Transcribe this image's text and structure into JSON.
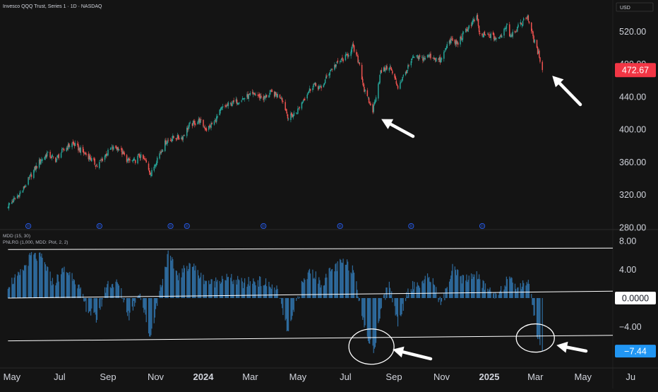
{
  "header": {
    "symbol_line": "Invesco QQQ Trust, Series 1 · 1D · NASDAQ",
    "currency": "USD"
  },
  "colors": {
    "background": "#141414",
    "up": "#26a69a",
    "down": "#ef5350",
    "histogram": "#2e6b9e",
    "last_price_badge": "#f23645",
    "indicator_badge": "#2196f3",
    "event_marker": "#2962ff",
    "line": "#ffffff",
    "arrow": "#ffffff"
  },
  "chart_data": [
    {
      "type": "candlestick",
      "title": "Invesco QQQ Trust, Series 1 · 1D · NASDAQ",
      "ylim": [
        280,
        555
      ],
      "y_ticks": [
        520,
        480,
        440,
        400,
        360,
        320,
        280
      ],
      "y_tick_labels": [
        "520.00",
        "480.00",
        "440.00",
        "400.00",
        "360.00",
        "320.00",
        "280.00"
      ],
      "last_price_label": "472.67",
      "series": [
        {
          "name": "close",
          "points": [
            [
              "2023-04-26",
              307
            ],
            [
              "2023-05-05",
              315
            ],
            [
              "2023-05-15",
              326
            ],
            [
              "2023-05-26",
              345
            ],
            [
              "2023-06-05",
              360
            ],
            [
              "2023-06-15",
              370
            ],
            [
              "2023-06-26",
              363
            ],
            [
              "2023-07-06",
              375
            ],
            [
              "2023-07-18",
              383
            ],
            [
              "2023-07-27",
              375
            ],
            [
              "2023-08-07",
              367
            ],
            [
              "2023-08-18",
              355
            ],
            [
              "2023-08-28",
              368
            ],
            [
              "2023-09-05",
              376
            ],
            [
              "2023-09-14",
              378
            ],
            [
              "2023-09-26",
              362
            ],
            [
              "2023-10-05",
              361
            ],
            [
              "2023-10-11",
              368
            ],
            [
              "2023-10-19",
              361
            ],
            [
              "2023-10-26",
              345
            ],
            [
              "2023-11-03",
              365
            ],
            [
              "2023-11-14",
              385
            ],
            [
              "2023-11-24",
              390
            ],
            [
              "2023-12-05",
              390
            ],
            [
              "2023-12-14",
              405
            ],
            [
              "2023-12-27",
              411
            ],
            [
              "2024-01-05",
              400
            ],
            [
              "2024-01-16",
              410
            ],
            [
              "2024-01-24",
              425
            ],
            [
              "2024-02-02",
              430
            ],
            [
              "2024-02-14",
              435
            ],
            [
              "2024-02-26",
              440
            ],
            [
              "2024-03-07",
              443
            ],
            [
              "2024-03-18",
              438
            ],
            [
              "2024-03-27",
              445
            ],
            [
              "2024-04-10",
              440
            ],
            [
              "2024-04-19",
              414
            ],
            [
              "2024-04-30",
              422
            ],
            [
              "2024-05-10",
              440
            ],
            [
              "2024-05-21",
              455
            ],
            [
              "2024-05-31",
              450
            ],
            [
              "2024-06-11",
              472
            ],
            [
              "2024-06-20",
              480
            ],
            [
              "2024-07-03",
              490
            ],
            [
              "2024-07-10",
              501
            ],
            [
              "2024-07-19",
              480
            ],
            [
              "2024-07-25",
              448
            ],
            [
              "2024-08-05",
              423
            ],
            [
              "2024-08-15",
              470
            ],
            [
              "2024-08-26",
              478
            ],
            [
              "2024-09-06",
              452
            ],
            [
              "2024-09-16",
              470
            ],
            [
              "2024-09-26",
              488
            ],
            [
              "2024-10-07",
              487
            ],
            [
              "2024-10-17",
              490
            ],
            [
              "2024-10-31",
              484
            ],
            [
              "2024-11-11",
              510
            ],
            [
              "2024-11-21",
              505
            ],
            [
              "2024-12-05",
              525
            ],
            [
              "2024-12-16",
              537
            ],
            [
              "2024-12-20",
              515
            ],
            [
              "2025-01-02",
              515
            ],
            [
              "2025-01-13",
              510
            ],
            [
              "2025-01-24",
              530
            ],
            [
              "2025-01-27",
              515
            ],
            [
              "2025-02-07",
              525
            ],
            [
              "2025-02-19",
              539
            ],
            [
              "2025-02-24",
              520
            ],
            [
              "2025-03-03",
              497
            ],
            [
              "2025-03-06",
              490
            ],
            [
              "2025-03-10",
              472.67
            ]
          ]
        }
      ],
      "event_markers": [
        "2023-05-22",
        "2023-08-21",
        "2023-11-20",
        "2023-12-11",
        "2024-03-18",
        "2024-06-24",
        "2024-09-23",
        "2024-12-23"
      ],
      "event_marker_letter": "D"
    },
    {
      "type": "bar",
      "title": "MDD (15, 30)",
      "subtitle": "PNLRG (1,000, MDD: Plot, 2, 2)",
      "ylim": [
        -9.5,
        9.3
      ],
      "y_ticks": [
        8,
        4,
        0,
        -4
      ],
      "y_tick_labels": [
        "8.00",
        "4.00",
        "0.0000",
        "−4.00"
      ],
      "last_value_label": "−7.44",
      "last_value": -7.44,
      "key_values": [
        [
          "2023-04-26",
          2
        ],
        [
          "2023-05-10",
          3
        ],
        [
          "2023-05-26",
          6
        ],
        [
          "2023-06-09",
          5.5
        ],
        [
          "2023-06-23",
          2
        ],
        [
          "2023-07-07",
          4
        ],
        [
          "2023-07-20",
          3
        ],
        [
          "2023-08-03",
          -1
        ],
        [
          "2023-08-17",
          -3
        ],
        [
          "2023-08-31",
          2
        ],
        [
          "2023-09-14",
          2
        ],
        [
          "2023-09-28",
          -2.5
        ],
        [
          "2023-10-11",
          1
        ],
        [
          "2023-10-25",
          -5.5
        ],
        [
          "2023-11-06",
          1
        ],
        [
          "2023-11-17",
          6
        ],
        [
          "2023-12-01",
          3
        ],
        [
          "2023-12-15",
          5
        ],
        [
          "2023-12-29",
          3
        ],
        [
          "2024-01-12",
          2
        ],
        [
          "2024-01-26",
          3
        ],
        [
          "2024-02-09",
          2.5
        ],
        [
          "2024-02-23",
          2
        ],
        [
          "2024-03-08",
          2.5
        ],
        [
          "2024-03-22",
          2
        ],
        [
          "2024-04-05",
          1
        ],
        [
          "2024-04-19",
          -5
        ],
        [
          "2024-05-03",
          1
        ],
        [
          "2024-05-17",
          4
        ],
        [
          "2024-05-31",
          2
        ],
        [
          "2024-06-14",
          4
        ],
        [
          "2024-06-28",
          5
        ],
        [
          "2024-07-12",
          4
        ],
        [
          "2024-07-26",
          -4.5
        ],
        [
          "2024-08-06",
          -7.5
        ],
        [
          "2024-08-16",
          -1
        ],
        [
          "2024-08-26",
          2
        ],
        [
          "2024-09-06",
          -3.5
        ],
        [
          "2024-09-20",
          1.5
        ],
        [
          "2024-10-04",
          2
        ],
        [
          "2024-10-18",
          3
        ],
        [
          "2024-11-01",
          -1
        ],
        [
          "2024-11-15",
          4
        ],
        [
          "2024-11-29",
          2.5
        ],
        [
          "2024-12-13",
          3.5
        ],
        [
          "2024-12-27",
          1.5
        ],
        [
          "2025-01-10",
          0.5
        ],
        [
          "2025-01-24",
          2.5
        ],
        [
          "2025-02-07",
          1.5
        ],
        [
          "2025-02-21",
          2.5
        ],
        [
          "2025-03-03",
          -5
        ],
        [
          "2025-03-10",
          -7.44
        ]
      ],
      "trend_lines": [
        {
          "from": [
            "2023-04-26",
            6.8
          ],
          "to": [
            "2025-07-03",
            7.0
          ]
        },
        {
          "from": [
            "2023-04-26",
            0.0
          ],
          "to": [
            "2025-07-03",
            1.0
          ]
        },
        {
          "from": [
            "2023-04-26",
            -6.0
          ],
          "to": [
            "2025-07-03",
            -5.2
          ]
        }
      ]
    }
  ],
  "x_axis": {
    "ticks": [
      "May",
      "Jul",
      "Sep",
      "Nov",
      "2024",
      "Mar",
      "May",
      "Jul",
      "Sep",
      "Nov",
      "2025",
      "Mar",
      "May",
      "Ju"
    ],
    "tick_dates": [
      "2023-05-01",
      "2023-07-01",
      "2023-09-01",
      "2023-11-01",
      "2024-01-01",
      "2024-03-01",
      "2024-05-01",
      "2024-07-01",
      "2024-09-01",
      "2024-11-01",
      "2025-01-01",
      "2025-03-01",
      "2025-05-01",
      "2025-07-01"
    ],
    "bold": [
      false,
      false,
      false,
      false,
      true,
      false,
      false,
      false,
      false,
      false,
      true,
      false,
      false,
      false
    ]
  }
}
